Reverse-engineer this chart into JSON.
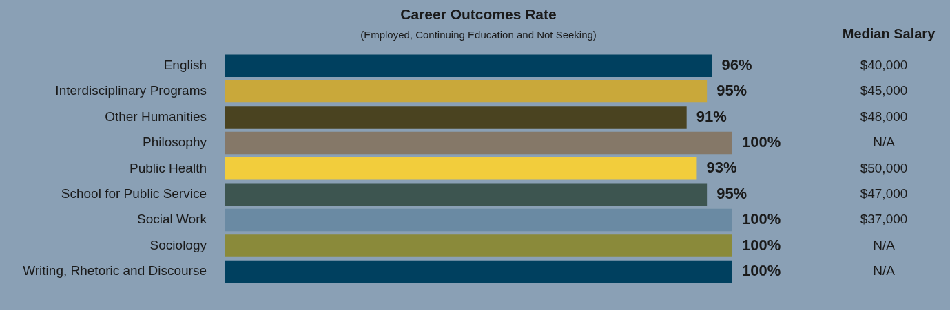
{
  "chart_data": {
    "type": "bar",
    "orientation": "horizontal",
    "title": "Career Outcomes Rate",
    "subtitle": "(Employed, Continuing Education and Not Seeking)",
    "categories": [
      "English",
      "Interdisciplinary Programs",
      "Other Humanities",
      "Philosophy",
      "Public Health",
      "School for Public Service",
      "Social Work",
      "Sociology",
      "Writing, Rhetoric and Discourse"
    ],
    "values": [
      96,
      95,
      91,
      100,
      93,
      95,
      100,
      100,
      100
    ],
    "colors": [
      "#00405f",
      "#c9a83a",
      "#4a4320",
      "#857868",
      "#f2cd3c",
      "#3d5550",
      "#6a8aa3",
      "#8a8a3a",
      "#00405f"
    ],
    "value_labels": [
      "96%",
      "95%",
      "91%",
      "100%",
      "93%",
      "95%",
      "100%",
      "100%",
      "100%"
    ],
    "xlim": [
      0,
      100
    ],
    "tick_labels": "y",
    "grid": false,
    "legend": false,
    "annotations": [
      "Median Salary",
      "$40,000",
      "$45,000",
      "$48,000",
      "N/A",
      "$50,000",
      "$47,000",
      "$37,000",
      "N/A",
      "N/A"
    ]
  }
}
